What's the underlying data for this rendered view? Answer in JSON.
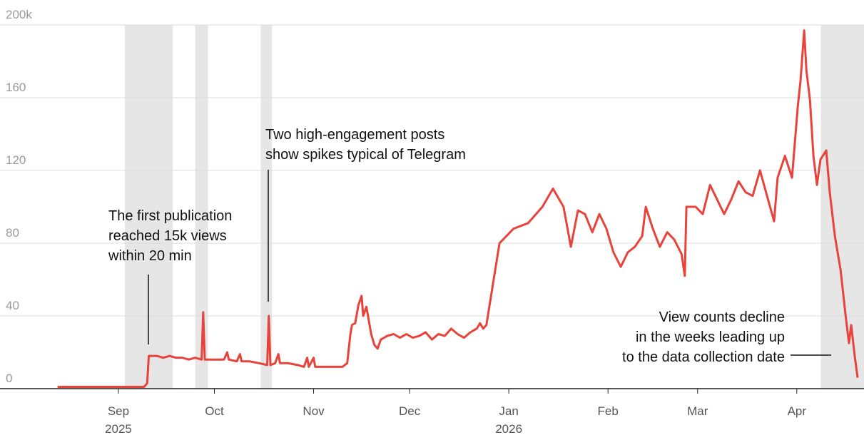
{
  "chart_data": {
    "type": "line",
    "color": "#e8423a",
    "xlim": [
      -37,
      233
    ],
    "ylim": [
      0,
      200
    ],
    "yticks": [
      0,
      40,
      80,
      120,
      160,
      {
        "value": 200,
        "label": "200k"
      }
    ],
    "xticks": [
      {
        "value": 0,
        "label": "Sep"
      },
      {
        "value": 30,
        "label": "Oct"
      },
      {
        "value": 61,
        "label": "Nov"
      },
      {
        "value": 91,
        "label": "Dec"
      },
      {
        "value": 122,
        "label": "Jan"
      },
      {
        "value": 153,
        "label": "Feb"
      },
      {
        "value": 181,
        "label": "Mar"
      },
      {
        "value": 212,
        "label": "Apr"
      }
    ],
    "year_labels": [
      {
        "value": 0,
        "label": "2025"
      },
      {
        "value": 122,
        "label": "2026"
      }
    ],
    "grid": true,
    "shaded_ranges": [
      [
        2,
        17
      ],
      [
        24,
        28
      ],
      [
        44.5,
        48
      ],
      [
        219.5,
        233
      ]
    ],
    "x": [
      -19,
      8,
      9,
      9.5,
      12,
      14,
      16,
      18,
      20,
      22,
      24,
      26,
      26.5,
      27,
      30,
      33,
      34,
      34.5,
      37,
      38,
      38.5,
      41,
      44,
      46.5,
      47,
      47.5,
      49,
      50,
      50.5,
      53,
      56,
      58,
      59,
      59.5,
      61,
      61.5,
      64,
      67,
      70,
      71.5,
      72.5,
      73,
      74,
      75,
      76,
      76.5,
      77.5,
      79,
      80,
      81,
      82,
      84,
      86,
      88,
      90,
      92,
      94,
      96,
      98,
      100,
      102,
      104,
      106,
      108,
      110,
      112,
      113,
      114,
      115,
      117,
      119.1,
      121.3,
      123.5,
      128,
      132.5,
      135.8,
      139.1,
      141.4,
      143.6,
      145.8,
      148.1,
      150.3,
      152.5,
      154.7,
      157,
      159.2,
      161.4,
      163.7,
      164.8,
      167,
      169.2,
      171.5,
      173.7,
      176,
      177,
      177.5,
      180.4,
      182.6,
      184.9,
      187.1,
      189.3,
      191.5,
      193.8,
      196,
      198.2,
      200.5,
      202.7,
      204.9,
      206,
      208.3,
      210.5,
      212.3,
      213.2,
      214.3,
      215,
      216.1,
      217.2,
      218.3,
      219.4,
      221.2,
      222.3,
      223.9,
      225.7,
      227.2,
      228.3,
      229,
      230.1,
      231
    ],
    "values": [
      1,
      1,
      3,
      18,
      18,
      17,
      18,
      17,
      17,
      16,
      17,
      16,
      42,
      16,
      16,
      16,
      20,
      16,
      15,
      19,
      15,
      15,
      14,
      13,
      40,
      13,
      14,
      19,
      14,
      14,
      13,
      12,
      17,
      12,
      17,
      12,
      12,
      12,
      12,
      14,
      30,
      35,
      36,
      46,
      51,
      40,
      45,
      30,
      24,
      22,
      27,
      29,
      30,
      28,
      30,
      28,
      29,
      31,
      27,
      30,
      29,
      33,
      30,
      28,
      31,
      33,
      36,
      33,
      35,
      57,
      80,
      84,
      88,
      91,
      100,
      110,
      100,
      78,
      98,
      96,
      86,
      96,
      88,
      75,
      67,
      75,
      78,
      84,
      100,
      88,
      78,
      86,
      82,
      74,
      62,
      100,
      100,
      96,
      112,
      104,
      96,
      104,
      114,
      108,
      106,
      120,
      106,
      92,
      116,
      128,
      116,
      155,
      170,
      197,
      175,
      159,
      128,
      112,
      126,
      131,
      108,
      84,
      65,
      41,
      25,
      35,
      18,
      6
    ],
    "annotations": [
      {
        "lines": [
          "The first publication",
          "reached 15k views",
          "within 20 min"
        ]
      },
      {
        "lines": [
          "Two high-engagement posts",
          "show spikes typical of Telegram"
        ]
      },
      {
        "lines": [
          "View counts decline",
          "in the weeks leading up",
          "to the data collection date"
        ]
      }
    ]
  }
}
